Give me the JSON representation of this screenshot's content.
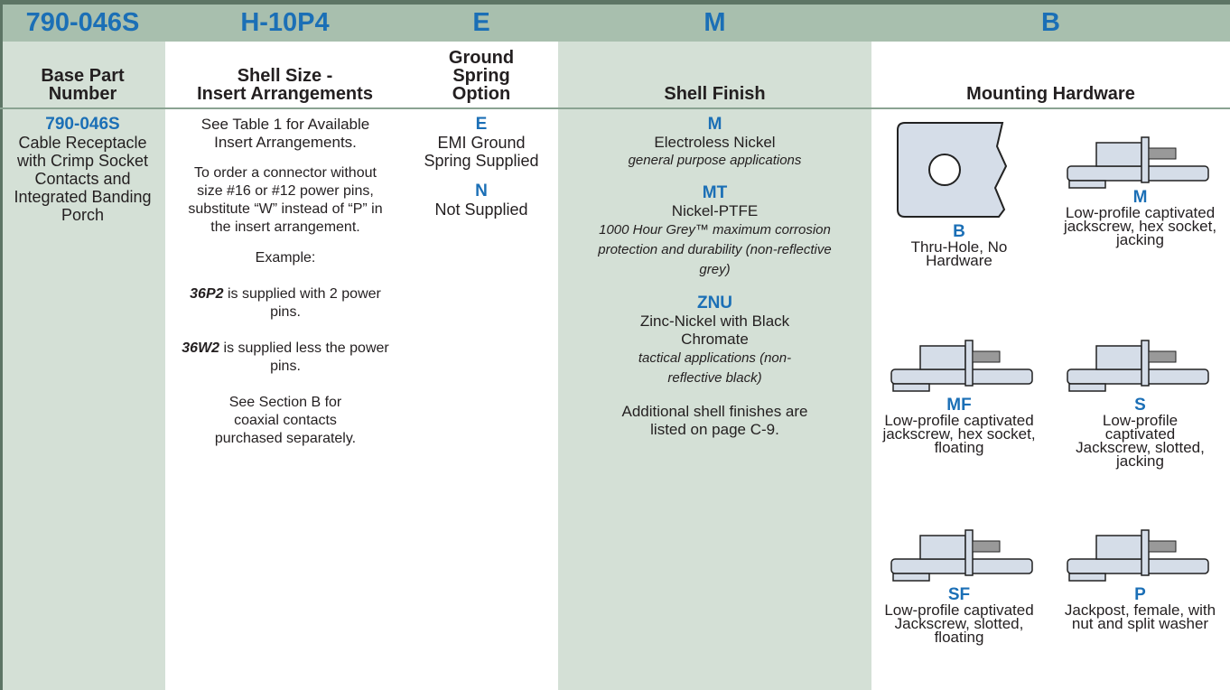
{
  "codes": [
    "790-046S",
    "H-10P4",
    "E",
    "M",
    "B"
  ],
  "headers": [
    [
      "Base Part",
      "Number"
    ],
    [
      "Shell Size -",
      "Insert Arrangements"
    ],
    [
      "Ground",
      "Spring",
      "Option"
    ],
    [
      "Shell Finish"
    ],
    [
      "Mounting Hardware"
    ]
  ],
  "base_part": {
    "code": "790-046S",
    "description": "Cable Receptacle with Crimp Socket Contacts and Integrated Banding Porch"
  },
  "shell_size": {
    "intro": "See Table 1 for Available Insert Arrangements.",
    "note": "To order a connector without size #16 or #12 power pins, substitute “W” instead of “P” in the insert arrangement.",
    "example_label": "Example:",
    "examples": [
      {
        "code": "36P2",
        "text": " is supplied with 2 power pins."
      },
      {
        "code": "36W2",
        "text": " is supplied less the power pins."
      }
    ],
    "footer": "See Section B for coaxial contacts purchased separately."
  },
  "ground_spring": [
    {
      "code": "E",
      "text": "EMI Ground Spring Supplied"
    },
    {
      "code": "N",
      "text": "Not Supplied"
    }
  ],
  "shell_finish": {
    "options": [
      {
        "code": "M",
        "name": "Electroless Nickel",
        "use": "general purpose applications"
      },
      {
        "code": "MT",
        "name": "Nickel-PTFE",
        "use": "1000 Hour Grey™ maximum corrosion protection and durability (non-reflective grey)"
      },
      {
        "code": "ZNU",
        "name": "Zinc-Nickel with Black Chromate",
        "use": "tactical applications (non-reflective black)"
      }
    ],
    "note": "Additional shell finishes are listed on page C-9."
  },
  "hardware": [
    {
      "code": "B",
      "text": "Thru-Hole, No Hardware"
    },
    {
      "code": "M",
      "text": "Low-profile captivated jackscrew, hex socket, jacking"
    },
    {
      "code": "MF",
      "text": "Low-profile captivated jackscrew, hex socket, floating"
    },
    {
      "code": "S",
      "text": "Low-profile captivated Jackscrew, slotted, jacking"
    },
    {
      "code": "SF",
      "text": "Low-profile captivated Jackscrew, slotted, floating"
    },
    {
      "code": "P",
      "text": "Jackpost, female, with nut and split washer"
    }
  ]
}
